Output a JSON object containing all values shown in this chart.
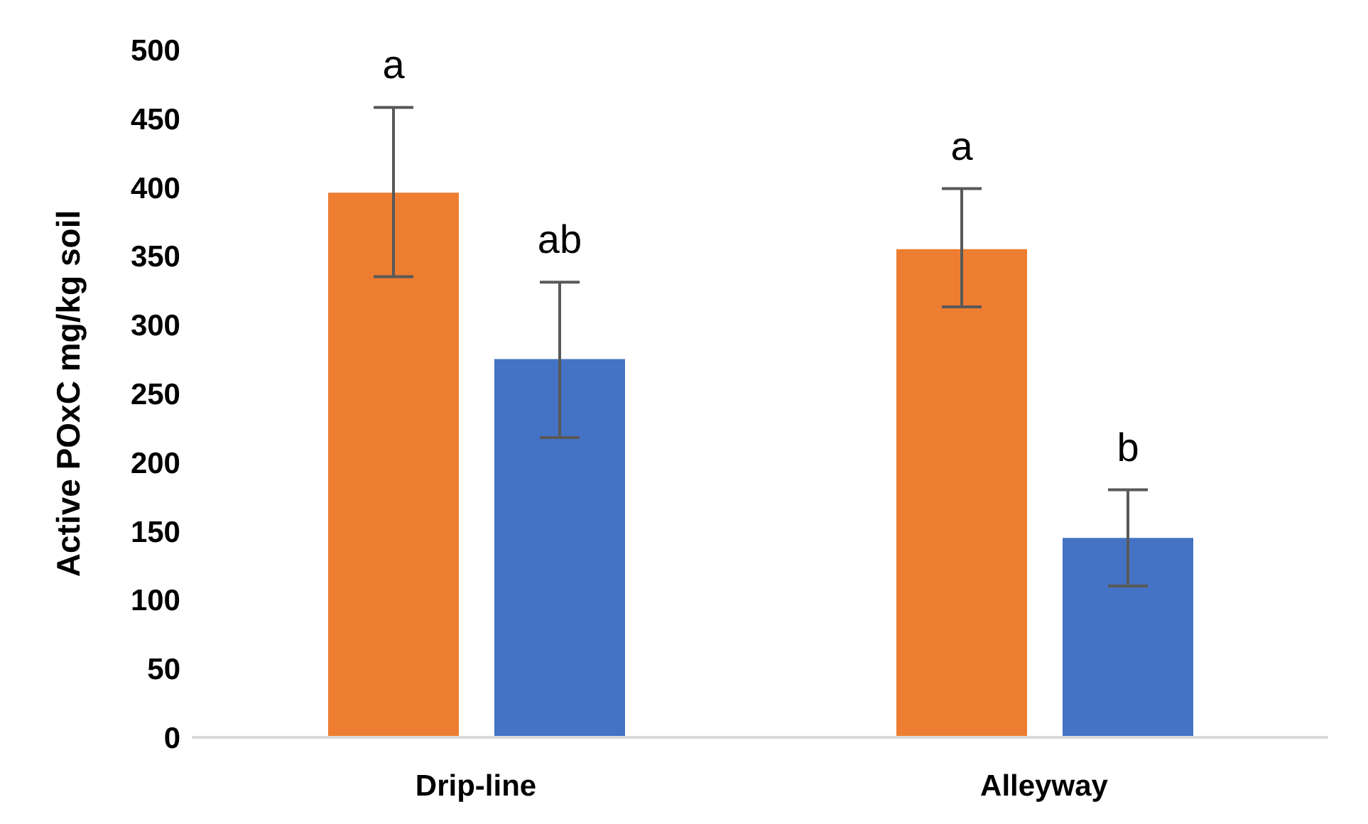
{
  "chart_data": {
    "type": "bar",
    "ylabel": "Active POxC mg/kg soil",
    "categories": [
      "Drip-line",
      "Alleyway"
    ],
    "series": [
      {
        "color": "#ed7d31",
        "values": [
          396,
          355
        ],
        "errors": [
          [
            335,
            458
          ],
          [
            313,
            399
          ]
        ]
      },
      {
        "color": "#4472c4",
        "values": [
          275,
          145
        ],
        "errors": [
          [
            218,
            331
          ],
          [
            110,
            180
          ]
        ]
      }
    ],
    "ylim": [
      0,
      500
    ],
    "yticks": [
      0,
      50,
      100,
      150,
      200,
      250,
      300,
      350,
      400,
      450,
      500
    ],
    "grid": false,
    "legend": false,
    "annotations": [
      "a",
      "ab",
      "a",
      "b"
    ]
  }
}
